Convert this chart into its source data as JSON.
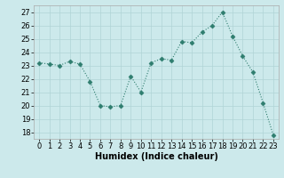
{
  "x": [
    0,
    1,
    2,
    3,
    4,
    5,
    6,
    7,
    8,
    9,
    10,
    11,
    12,
    13,
    14,
    15,
    16,
    17,
    18,
    19,
    20,
    21,
    22,
    23
  ],
  "y": [
    23.2,
    23.1,
    23.0,
    23.3,
    23.1,
    21.8,
    20.0,
    19.9,
    20.0,
    22.2,
    21.0,
    23.2,
    23.5,
    23.4,
    24.8,
    24.7,
    25.5,
    26.0,
    27.0,
    25.2,
    23.7,
    22.5,
    20.2,
    17.8
  ],
  "line_color": "#2e7d6e",
  "marker": "D",
  "marker_size": 2.5,
  "bg_color": "#cce9eb",
  "grid_color": "#b0d4d6",
  "xlabel": "Humidex (Indice chaleur)",
  "ylim": [
    17.5,
    27.5
  ],
  "xlim": [
    -0.5,
    23.5
  ],
  "yticks": [
    18,
    19,
    20,
    21,
    22,
    23,
    24,
    25,
    26,
    27
  ],
  "xticks": [
    0,
    1,
    2,
    3,
    4,
    5,
    6,
    7,
    8,
    9,
    10,
    11,
    12,
    13,
    14,
    15,
    16,
    17,
    18,
    19,
    20,
    21,
    22,
    23
  ],
  "tick_fontsize": 6,
  "xlabel_fontsize": 7
}
